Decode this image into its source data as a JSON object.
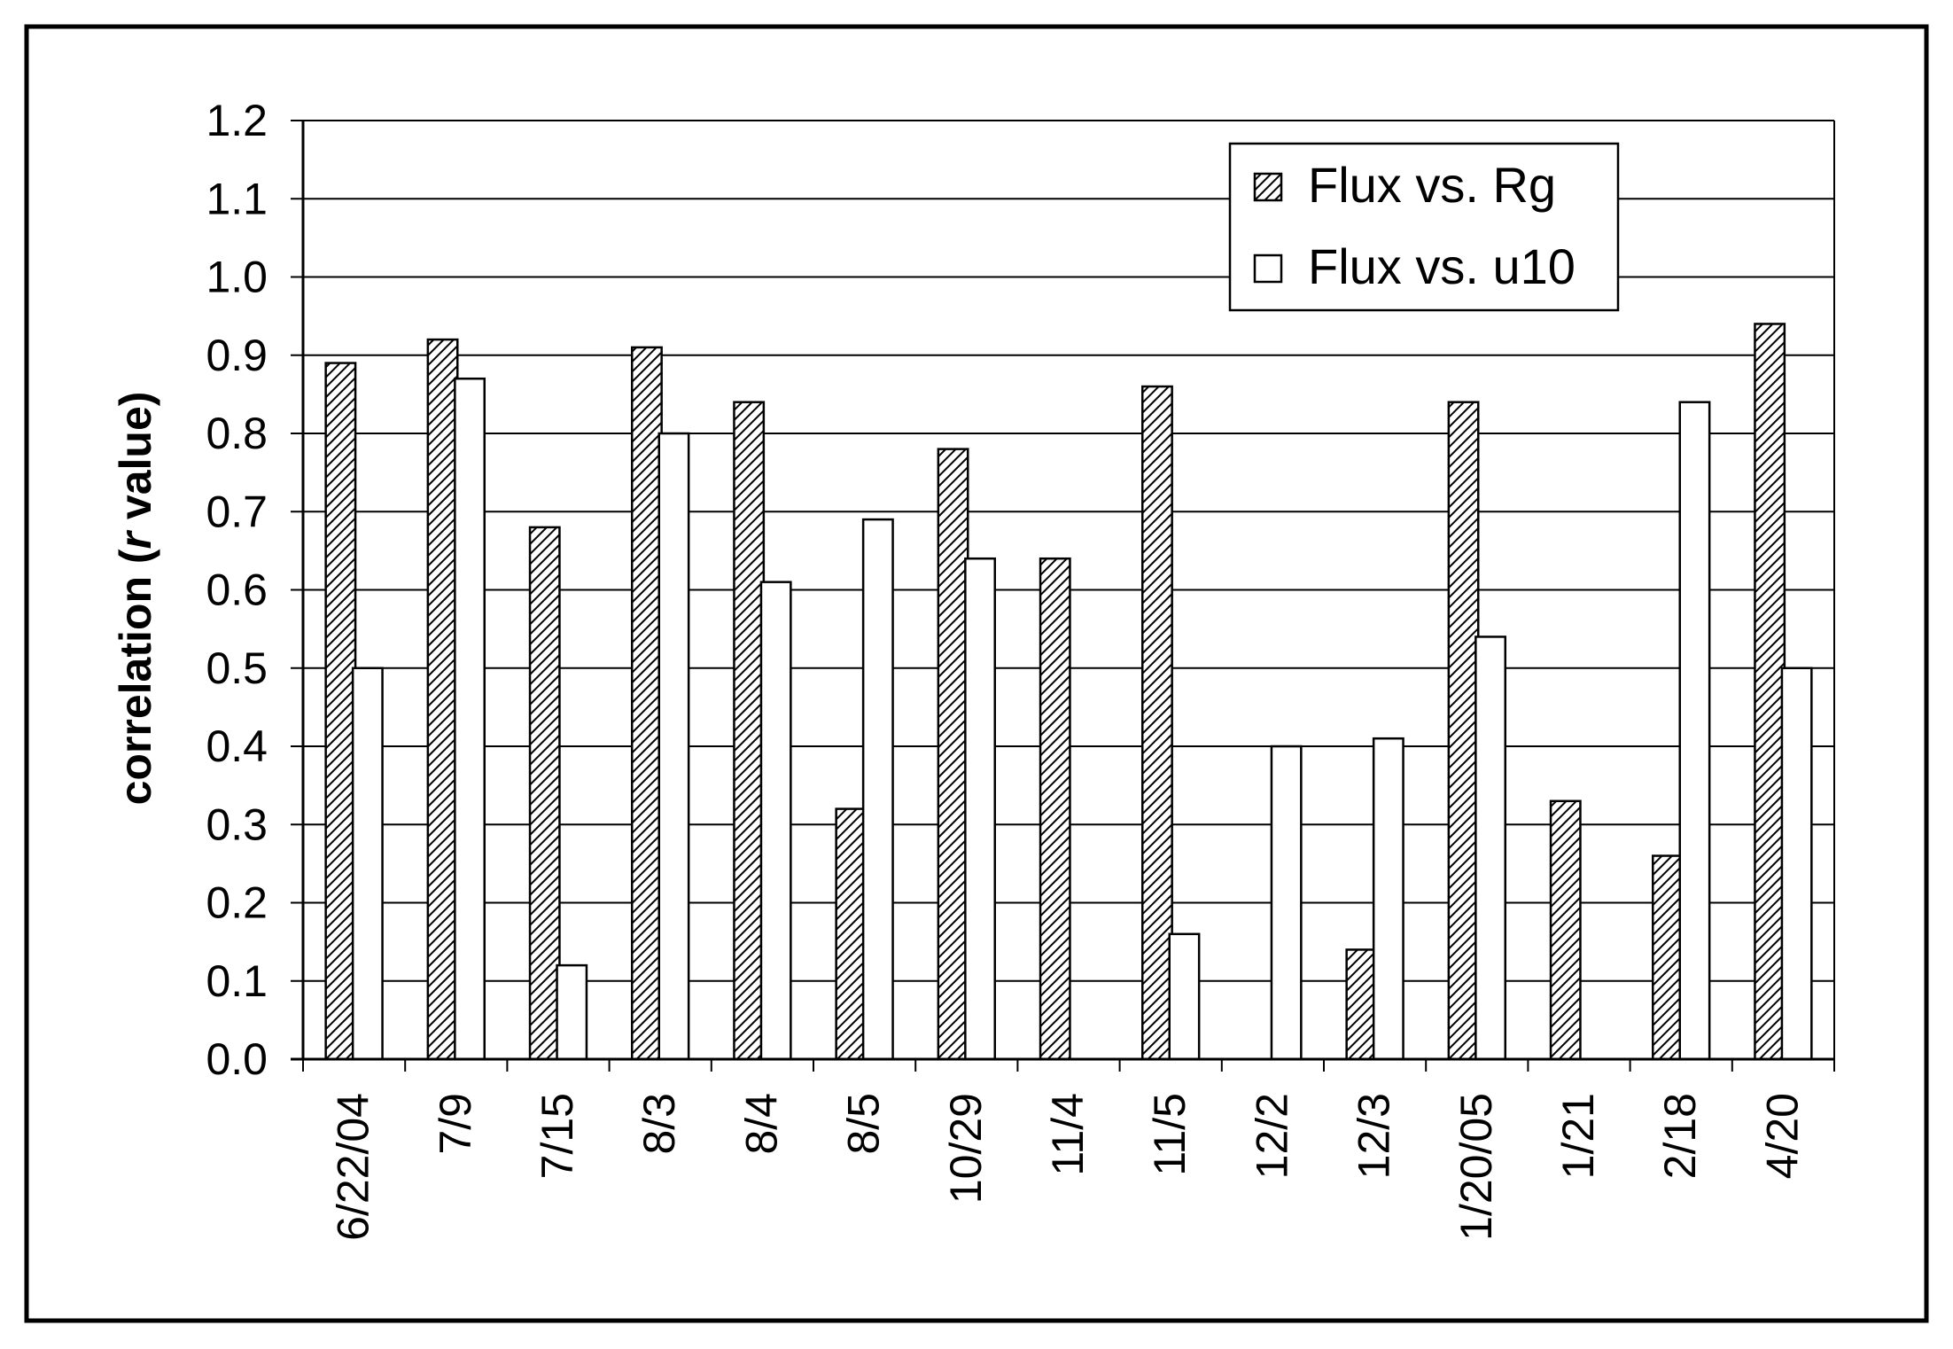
{
  "chart_data": {
    "type": "bar",
    "ylabel": "correlation (r value)",
    "ylabel_parts": [
      "correlation (",
      "r",
      " value)"
    ],
    "xlabel": "",
    "ylim": [
      0.0,
      1.2
    ],
    "y_ticks": [
      0.0,
      0.1,
      0.2,
      0.3,
      0.4,
      0.5,
      0.6,
      0.7,
      0.8,
      0.9,
      1.0,
      1.1,
      1.2
    ],
    "y_tick_labels": [
      "0.0",
      "0.1",
      "0.2",
      "0.3",
      "0.4",
      "0.5",
      "0.6",
      "0.7",
      "0.8",
      "0.9",
      "1.0",
      "1.1",
      "1.2"
    ],
    "grid": "horizontal",
    "legend_position": "top-right",
    "categories": [
      "6/22/04",
      "7/9",
      "7/15",
      "8/3",
      "8/4",
      "8/5",
      "10/29",
      "11/4",
      "11/5",
      "12/2",
      "12/3",
      "1/20/05",
      "1/21",
      "2/18",
      "4/20"
    ],
    "series": [
      {
        "name": "Flux vs. Rg",
        "fill": "hatched",
        "values": [
          0.89,
          0.92,
          0.68,
          0.91,
          0.84,
          0.32,
          0.78,
          0.64,
          0.86,
          0.0,
          0.14,
          0.84,
          0.33,
          0.26,
          0.94
        ]
      },
      {
        "name": "Flux vs. u10",
        "fill": "white",
        "values": [
          0.5,
          0.87,
          0.12,
          0.8,
          0.61,
          0.69,
          0.64,
          0.0,
          0.16,
          0.4,
          0.41,
          0.54,
          0.0,
          0.84,
          0.5
        ]
      }
    ],
    "legend_labels": [
      "Flux vs. Rg",
      "Flux vs. u10"
    ],
    "colors": {
      "bar_stroke": "#000000",
      "hatch": "#000000",
      "gridline": "#000000",
      "background": "#ffffff"
    }
  }
}
